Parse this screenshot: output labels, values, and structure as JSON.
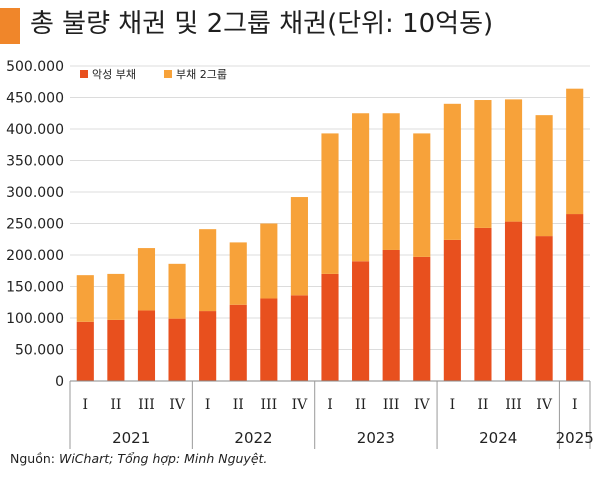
{
  "header": {
    "title": "총 불량 채권 및 2그룹 채권(단위: 10억동)",
    "accent_color": "#f0862a"
  },
  "source": {
    "label": "Nguồn: ",
    "text": "WiChart; Tổng hợp: Minh Nguyệt."
  },
  "chart_data": {
    "type": "bar",
    "stacked": true,
    "title": "총 불량 채권 및 2그룹 채권(단위: 10억동)",
    "xlabel": "",
    "ylabel": "",
    "ylim": [
      0,
      500000
    ],
    "yticks": [
      0,
      50000,
      100000,
      150000,
      200000,
      250000,
      300000,
      350000,
      400000,
      450000,
      500000
    ],
    "ytick_labels": [
      "0",
      "50.000",
      "100.000",
      "150.000",
      "200.000",
      "250.000",
      "300.000",
      "350.000",
      "400.000",
      "450.000",
      "500.000"
    ],
    "grid": true,
    "legend_position": "top-left",
    "categories": [
      "I",
      "II",
      "III",
      "IV",
      "I",
      "II",
      "III",
      "IV",
      "I",
      "II",
      "III",
      "IV",
      "I",
      "II",
      "III",
      "IV",
      "I"
    ],
    "groups": [
      {
        "label": "2021",
        "span": 4
      },
      {
        "label": "2022",
        "span": 4
      },
      {
        "label": "2023",
        "span": 4
      },
      {
        "label": "2024",
        "span": 4
      },
      {
        "label": "2025",
        "span": 1
      }
    ],
    "series": [
      {
        "name": "악성 부채",
        "color": "#e8501e",
        "values": [
          94000,
          97000,
          112000,
          99000,
          111000,
          121000,
          131000,
          136000,
          170000,
          190000,
          208000,
          197000,
          224000,
          243000,
          253000,
          230000,
          265000
        ]
      },
      {
        "name": "부채 2그룹",
        "color": "#f7a23a",
        "values": [
          74000,
          73000,
          99000,
          87000,
          130000,
          99000,
          119000,
          156000,
          223000,
          235000,
          217000,
          196000,
          216000,
          203000,
          194000,
          192000,
          199000
        ]
      }
    ]
  }
}
